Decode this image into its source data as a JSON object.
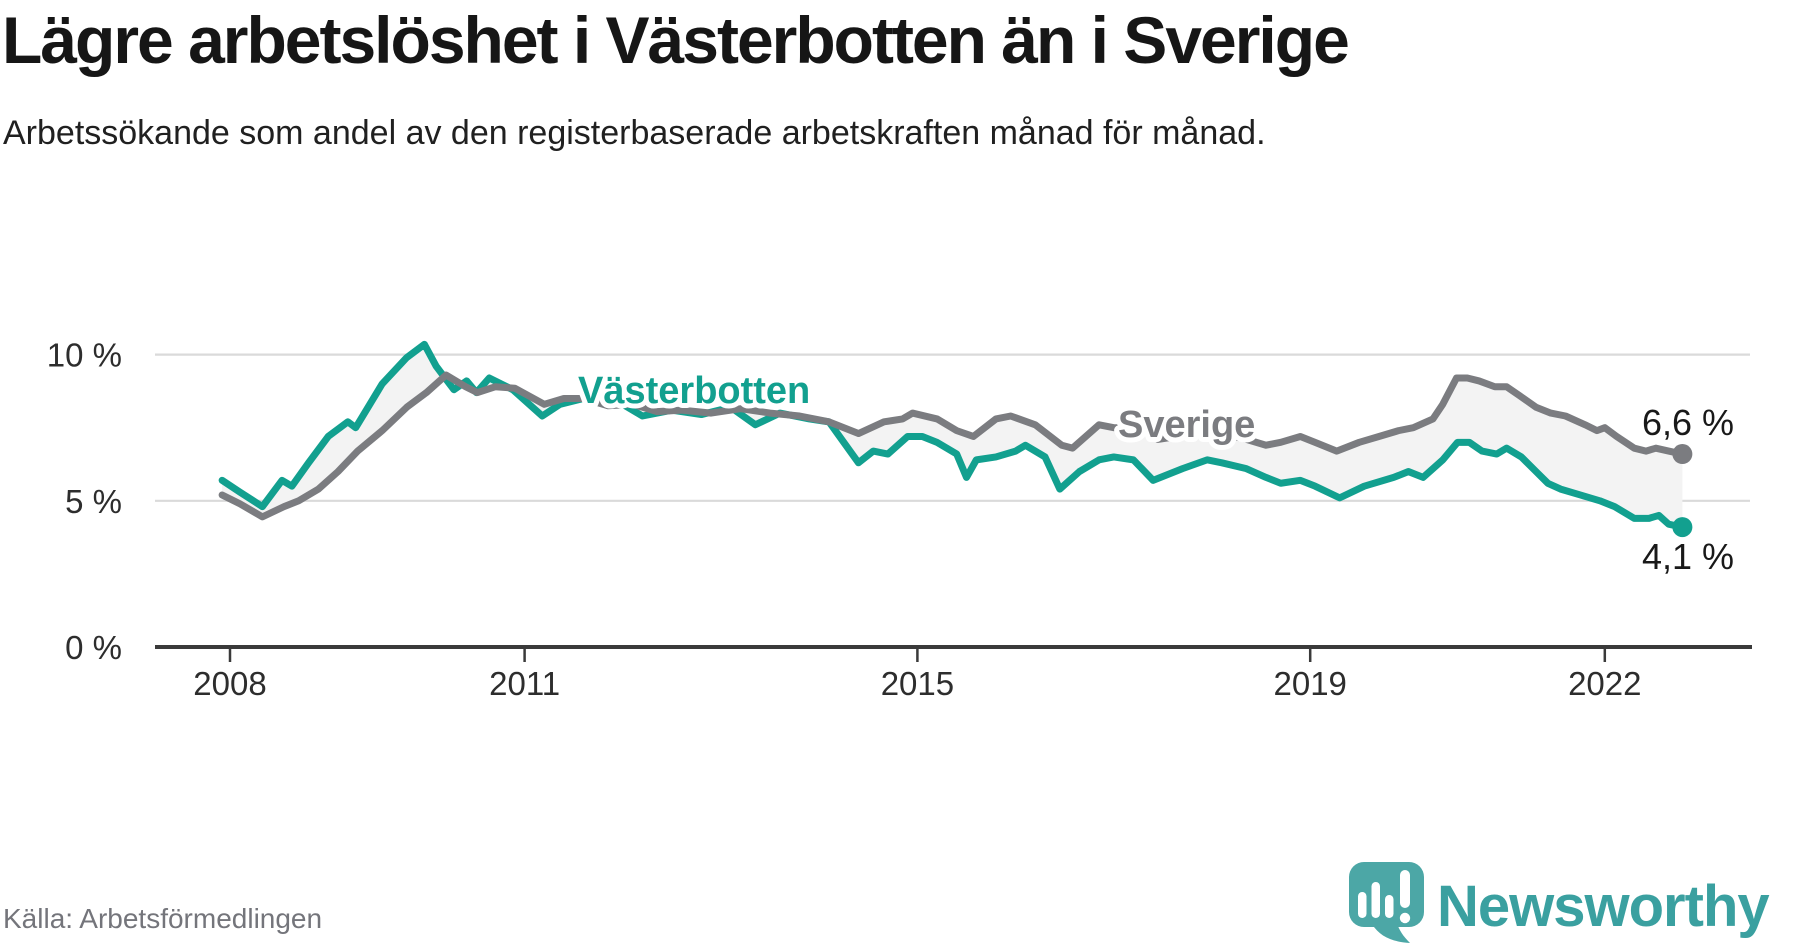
{
  "header": {
    "title": "Lägre arbetslöshet i Västerbotten än i Sverige",
    "subtitle": "Arbetssökande som andel av den registerbaserade arbetskraften månad för månad."
  },
  "footer": {
    "source": "Källa: Arbetsförmedlingen"
  },
  "logo": {
    "brand": "Newsworthy",
    "mark_color": "#4ca7a6",
    "text_color": "#3aa0a0"
  },
  "chart_data": {
    "type": "line",
    "unit": "%",
    "grid": true,
    "legend_position": "inline-labels",
    "band_color": "#f3f3f3",
    "x_range": [
      2007.9,
      2022.8
    ],
    "y_range": [
      0,
      13
    ],
    "x_ticks": [
      {
        "value": 2008,
        "label": "2008"
      },
      {
        "value": 2011,
        "label": "2011"
      },
      {
        "value": 2015,
        "label": "2015"
      },
      {
        "value": 2019,
        "label": "2019"
      },
      {
        "value": 2022,
        "label": "2022"
      }
    ],
    "y_ticks": [
      {
        "value": 10,
        "label": "10 %"
      },
      {
        "value": 5,
        "label": "5 %"
      },
      {
        "value": 0,
        "label": "0 %"
      }
    ],
    "series": [
      {
        "name": "Västerbotten",
        "color": "#12a08f",
        "end_label": "4,1 %",
        "end_value": 4.1,
        "points": [
          [
            2007.92,
            5.7
          ],
          [
            2008.1,
            5.3
          ],
          [
            2008.33,
            4.8
          ],
          [
            2008.53,
            5.7
          ],
          [
            2008.63,
            5.5
          ],
          [
            2008.8,
            6.3
          ],
          [
            2009.0,
            7.2
          ],
          [
            2009.2,
            7.7
          ],
          [
            2009.28,
            7.5
          ],
          [
            2009.55,
            9.0
          ],
          [
            2009.8,
            9.9
          ],
          [
            2009.98,
            10.35
          ],
          [
            2010.1,
            9.6
          ],
          [
            2010.28,
            8.8
          ],
          [
            2010.41,
            9.1
          ],
          [
            2010.51,
            8.7
          ],
          [
            2010.64,
            9.2
          ],
          [
            2010.88,
            8.8
          ],
          [
            2011.18,
            7.9
          ],
          [
            2011.36,
            8.3
          ],
          [
            2011.6,
            8.5
          ],
          [
            2011.9,
            8.5
          ],
          [
            2012.2,
            7.9
          ],
          [
            2012.5,
            8.1
          ],
          [
            2012.8,
            7.95
          ],
          [
            2013.1,
            8.2
          ],
          [
            2013.35,
            7.6
          ],
          [
            2013.6,
            8.0
          ],
          [
            2013.9,
            7.8
          ],
          [
            2014.1,
            7.7
          ],
          [
            2014.4,
            6.3
          ],
          [
            2014.55,
            6.7
          ],
          [
            2014.7,
            6.6
          ],
          [
            2014.9,
            7.2
          ],
          [
            2015.05,
            7.2
          ],
          [
            2015.2,
            7.0
          ],
          [
            2015.4,
            6.6
          ],
          [
            2015.5,
            5.8
          ],
          [
            2015.6,
            6.4
          ],
          [
            2015.8,
            6.5
          ],
          [
            2016.0,
            6.7
          ],
          [
            2016.1,
            6.9
          ],
          [
            2016.3,
            6.5
          ],
          [
            2016.45,
            5.4
          ],
          [
            2016.65,
            6.0
          ],
          [
            2016.85,
            6.4
          ],
          [
            2017.0,
            6.5
          ],
          [
            2017.2,
            6.4
          ],
          [
            2017.4,
            5.7
          ],
          [
            2017.7,
            6.1
          ],
          [
            2017.95,
            6.4
          ],
          [
            2018.1,
            6.3
          ],
          [
            2018.35,
            6.1
          ],
          [
            2018.55,
            5.8
          ],
          [
            2018.7,
            5.6
          ],
          [
            2018.9,
            5.7
          ],
          [
            2019.05,
            5.5
          ],
          [
            2019.3,
            5.1
          ],
          [
            2019.55,
            5.5
          ],
          [
            2019.85,
            5.8
          ],
          [
            2020.0,
            6.0
          ],
          [
            2020.15,
            5.8
          ],
          [
            2020.35,
            6.4
          ],
          [
            2020.5,
            7.0
          ],
          [
            2020.62,
            7.0
          ],
          [
            2020.75,
            6.7
          ],
          [
            2020.9,
            6.6
          ],
          [
            2021.0,
            6.8
          ],
          [
            2021.15,
            6.5
          ],
          [
            2021.3,
            6.0
          ],
          [
            2021.42,
            5.6
          ],
          [
            2021.55,
            5.4
          ],
          [
            2021.75,
            5.2
          ],
          [
            2021.95,
            5.0
          ],
          [
            2022.1,
            4.8
          ],
          [
            2022.3,
            4.4
          ],
          [
            2022.45,
            4.4
          ],
          [
            2022.55,
            4.5
          ],
          [
            2022.65,
            4.2
          ],
          [
            2022.79,
            4.1
          ]
        ]
      },
      {
        "name": "Sverige",
        "color": "#7b7c80",
        "end_label": "6,6 %",
        "end_value": 6.6,
        "points": [
          [
            2007.92,
            5.2
          ],
          [
            2008.1,
            4.9
          ],
          [
            2008.33,
            4.45
          ],
          [
            2008.55,
            4.8
          ],
          [
            2008.7,
            5.0
          ],
          [
            2008.9,
            5.4
          ],
          [
            2009.1,
            6.0
          ],
          [
            2009.3,
            6.7
          ],
          [
            2009.55,
            7.4
          ],
          [
            2009.8,
            8.2
          ],
          [
            2010.0,
            8.7
          ],
          [
            2010.2,
            9.3
          ],
          [
            2010.4,
            8.9
          ],
          [
            2010.52,
            8.7
          ],
          [
            2010.7,
            8.9
          ],
          [
            2010.9,
            8.85
          ],
          [
            2011.2,
            8.3
          ],
          [
            2011.4,
            8.5
          ],
          [
            2011.6,
            8.5
          ],
          [
            2011.85,
            8.25
          ],
          [
            2012.1,
            8.3
          ],
          [
            2012.35,
            8.05
          ],
          [
            2012.6,
            8.1
          ],
          [
            2012.9,
            8.0
          ],
          [
            2013.2,
            8.15
          ],
          [
            2013.5,
            8.0
          ],
          [
            2013.8,
            7.9
          ],
          [
            2014.1,
            7.7
          ],
          [
            2014.4,
            7.3
          ],
          [
            2014.66,
            7.7
          ],
          [
            2014.85,
            7.8
          ],
          [
            2014.95,
            8.0
          ],
          [
            2015.2,
            7.8
          ],
          [
            2015.4,
            7.4
          ],
          [
            2015.57,
            7.2
          ],
          [
            2015.8,
            7.8
          ],
          [
            2015.95,
            7.9
          ],
          [
            2016.2,
            7.6
          ],
          [
            2016.47,
            6.9
          ],
          [
            2016.58,
            6.8
          ],
          [
            2016.85,
            7.6
          ],
          [
            2017.0,
            7.5
          ],
          [
            2017.25,
            7.5
          ],
          [
            2017.45,
            7.1
          ],
          [
            2017.65,
            7.2
          ],
          [
            2017.9,
            7.4
          ],
          [
            2018.1,
            7.3
          ],
          [
            2018.35,
            7.1
          ],
          [
            2018.55,
            6.9
          ],
          [
            2018.7,
            7.0
          ],
          [
            2018.9,
            7.2
          ],
          [
            2019.05,
            7.0
          ],
          [
            2019.27,
            6.7
          ],
          [
            2019.5,
            7.0
          ],
          [
            2019.7,
            7.2
          ],
          [
            2019.9,
            7.4
          ],
          [
            2020.05,
            7.5
          ],
          [
            2020.25,
            7.8
          ],
          [
            2020.35,
            8.3
          ],
          [
            2020.49,
            9.2
          ],
          [
            2020.6,
            9.2
          ],
          [
            2020.72,
            9.1
          ],
          [
            2020.88,
            8.9
          ],
          [
            2021.0,
            8.9
          ],
          [
            2021.13,
            8.6
          ],
          [
            2021.3,
            8.2
          ],
          [
            2021.45,
            8.0
          ],
          [
            2021.6,
            7.9
          ],
          [
            2021.8,
            7.6
          ],
          [
            2021.92,
            7.4
          ],
          [
            2022.0,
            7.5
          ],
          [
            2022.12,
            7.2
          ],
          [
            2022.3,
            6.8
          ],
          [
            2022.42,
            6.7
          ],
          [
            2022.52,
            6.8
          ],
          [
            2022.65,
            6.7
          ],
          [
            2022.79,
            6.6
          ]
        ]
      }
    ]
  }
}
